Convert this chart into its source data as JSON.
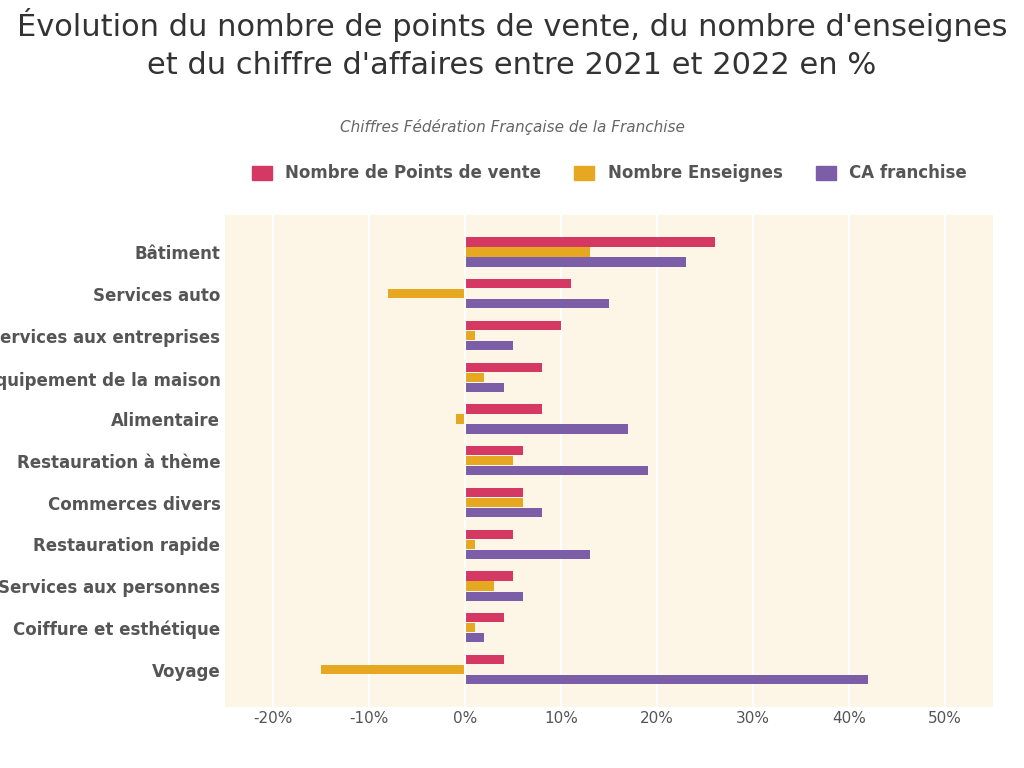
{
  "title": "Évolution du nombre de points de vente, du nombre d'enseignes\net du chiffre d'affaires entre 2021 et 2022 en %",
  "subtitle": "Chiffres Fédération Française de la Franchise",
  "categories": [
    "Bâtiment",
    "Services auto",
    "Services aux entreprises",
    "Équipement de la maison",
    "Alimentaire",
    "Restauration à thème",
    "Commerces divers",
    "Restauration rapide",
    "Services aux personnes",
    "Coiffure et esthétique",
    "Voyage"
  ],
  "series": {
    "Nombre de Points de vente": [
      26,
      11,
      10,
      8,
      8,
      6,
      6,
      5,
      5,
      4,
      4
    ],
    "Nombre Enseignes": [
      13,
      -8,
      1,
      2,
      -1,
      5,
      6,
      1,
      3,
      1,
      -15
    ],
    "CA franchise": [
      23,
      15,
      5,
      4,
      17,
      19,
      8,
      13,
      6,
      2,
      42
    ]
  },
  "colors": {
    "Nombre de Points de vente": "#d63864",
    "Nombre Enseignes": "#e5a820",
    "CA franchise": "#7b5ea7"
  },
  "xlim": [
    -25,
    55
  ],
  "xticks": [
    -20,
    -10,
    0,
    10,
    20,
    30,
    40,
    50
  ],
  "xticklabels": [
    "-20%",
    "-10%",
    "0%",
    "10%",
    "20%",
    "30%",
    "40%",
    "50%"
  ],
  "background_color": "#ffffff",
  "plot_background": "#fdf5e6",
  "bar_height": 0.22,
  "bar_spacing": 0.24,
  "title_fontsize": 22,
  "subtitle_fontsize": 11,
  "category_fontsize": 12,
  "legend_fontsize": 12,
  "tick_fontsize": 11
}
